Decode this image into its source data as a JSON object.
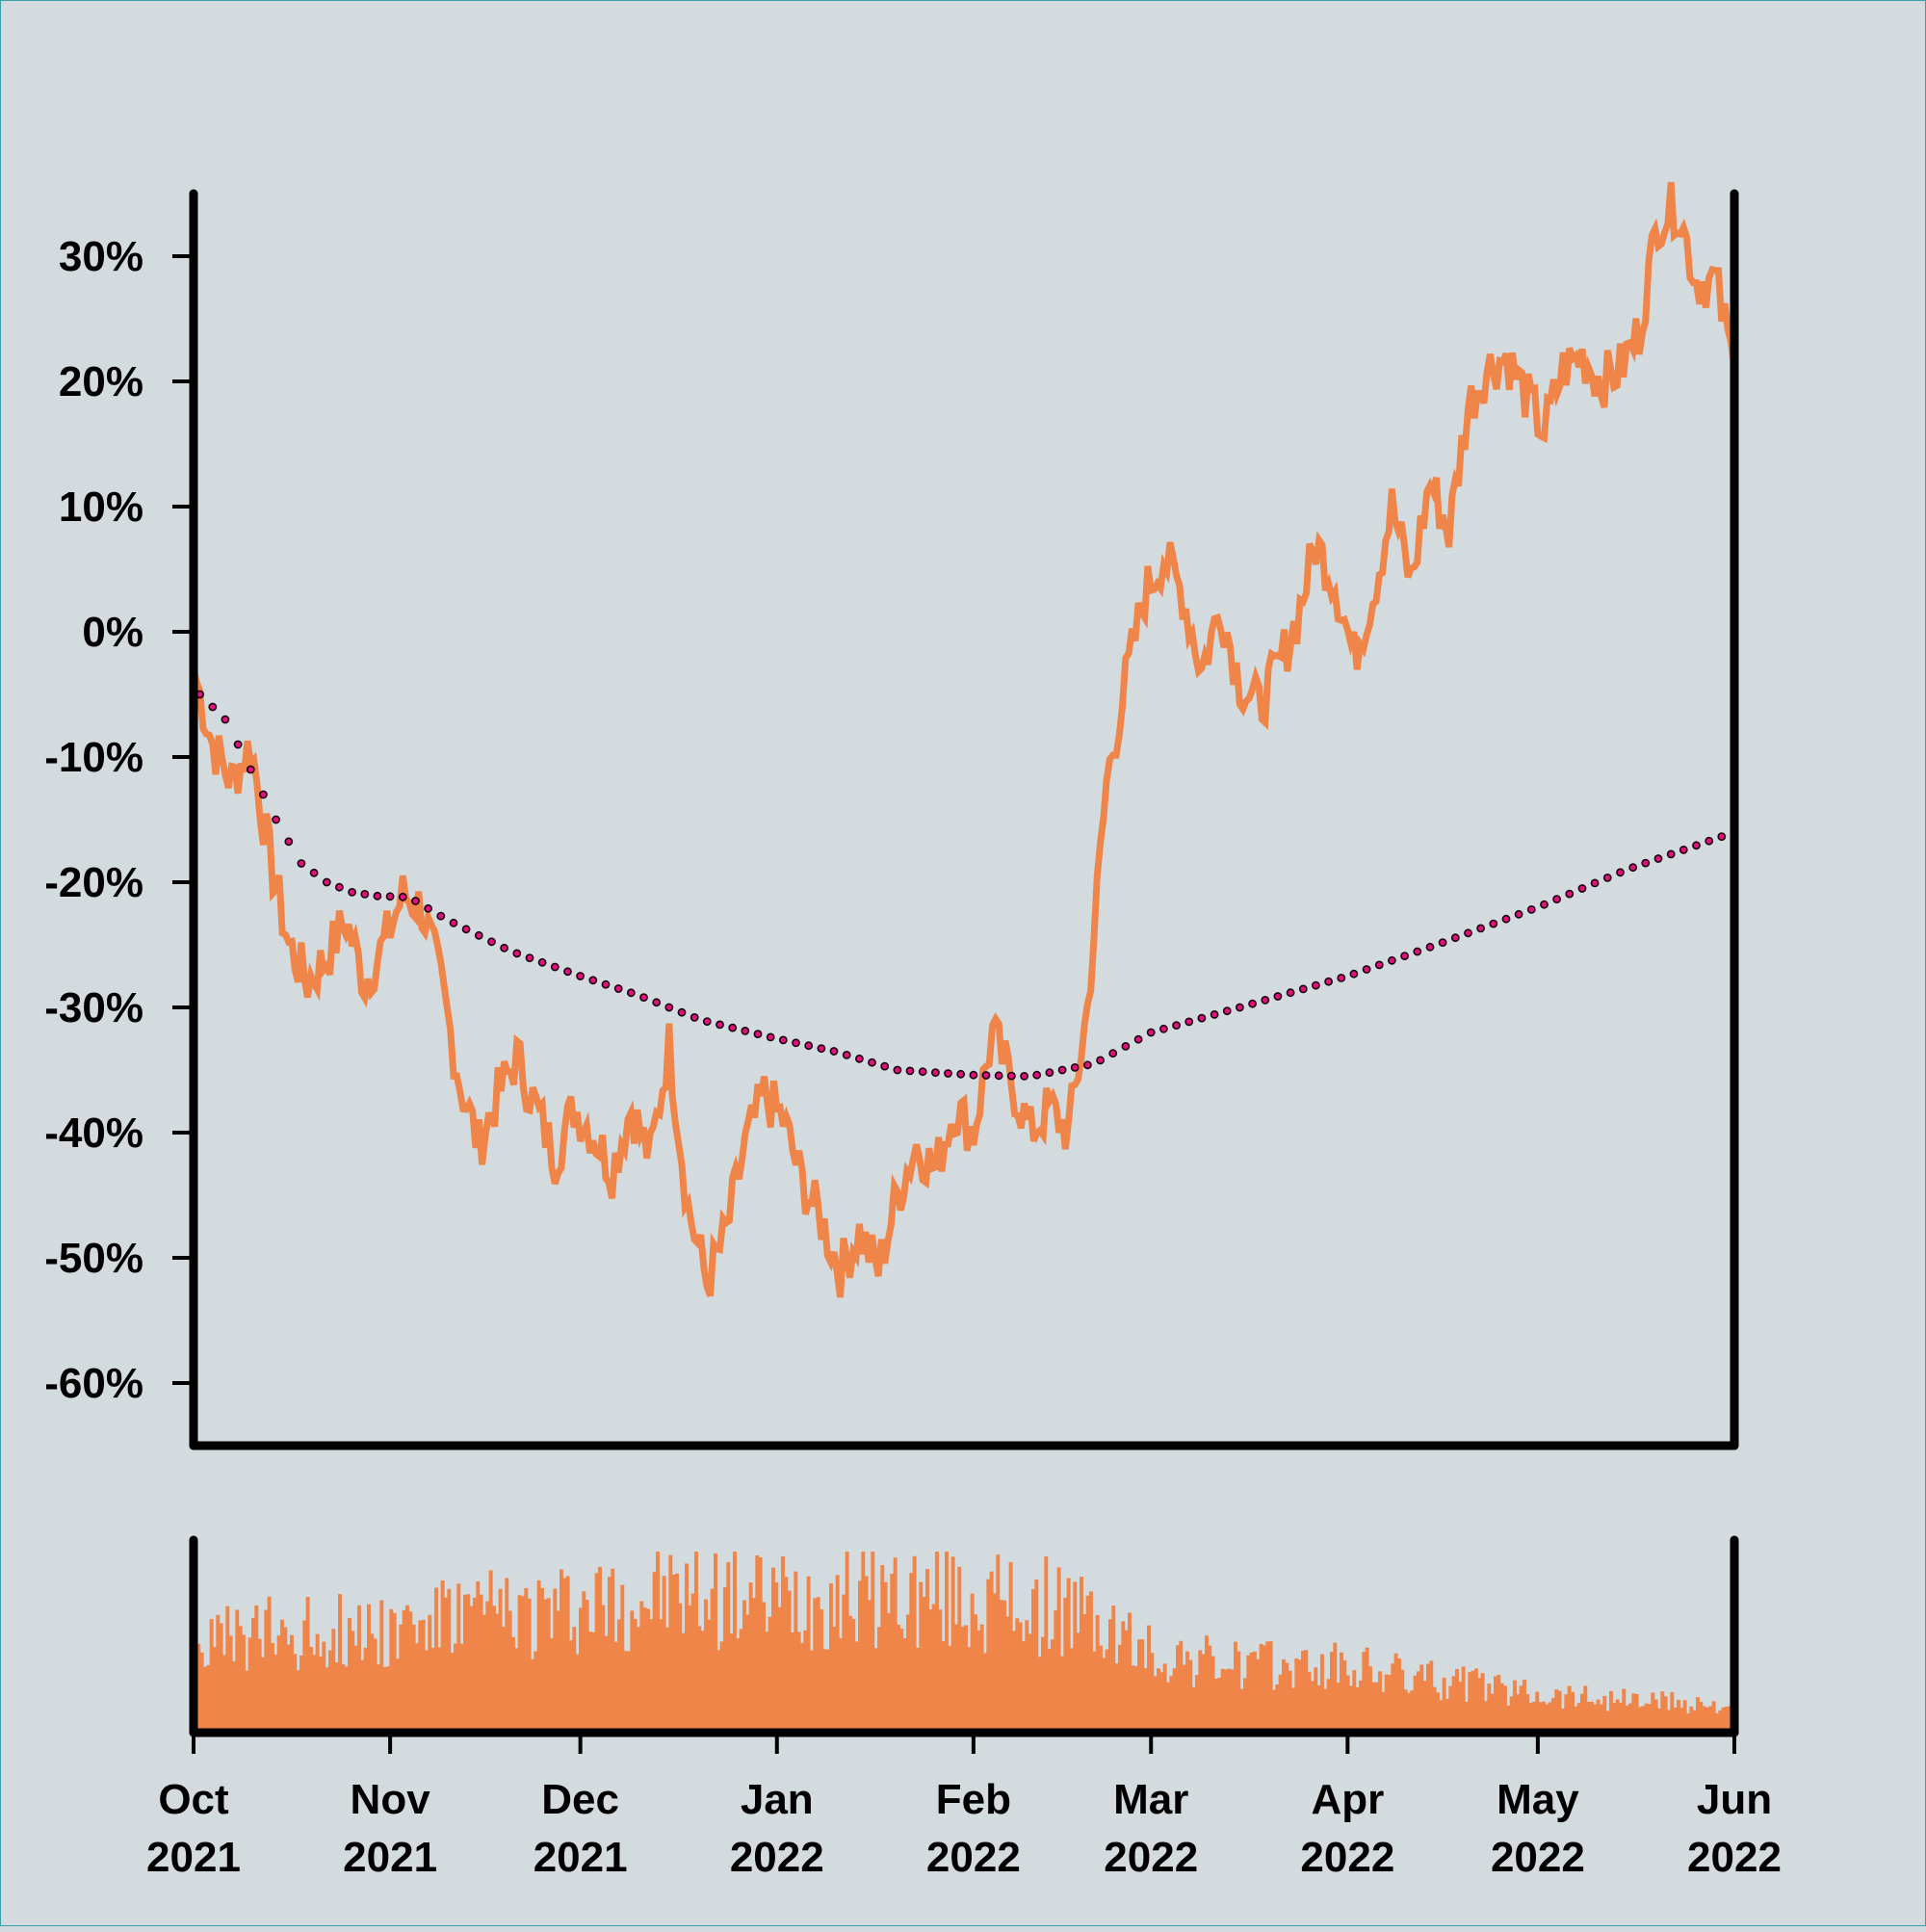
{
  "colors": {
    "background": "#d3dbdf",
    "price_line": "#ef8548",
    "volume_bars": "#ef8548",
    "moving_average_fill": "#e0117a",
    "moving_average_stroke": "#1a0010",
    "axis": "#000000"
  },
  "chart_data": [
    {
      "type": "line",
      "title": "",
      "xlabel": "",
      "ylabel": "",
      "x_range": [
        "2021-10-01",
        "2022-06-01"
      ],
      "ylim": [
        -65,
        35
      ],
      "y_ticks": [
        {
          "value": 30,
          "label": "30%"
        },
        {
          "value": 20,
          "label": "20%"
        },
        {
          "value": 10,
          "label": "10%"
        },
        {
          "value": 0,
          "label": "0%"
        },
        {
          "value": -10,
          "label": "-10%"
        },
        {
          "value": -20,
          "label": "-20%"
        },
        {
          "value": -30,
          "label": "-30%"
        },
        {
          "value": -40,
          "label": "-40%"
        },
        {
          "value": -50,
          "label": "-50%"
        },
        {
          "value": -60,
          "label": "-60%"
        }
      ],
      "grid": false,
      "series": [
        {
          "style": "solid-line",
          "points": [
            [
              "2021-10-01",
              -3
            ],
            [
              "2021-10-04",
              -9
            ],
            [
              "2021-10-07",
              -12
            ],
            [
              "2021-10-10",
              -9
            ],
            [
              "2021-10-13",
              -18
            ],
            [
              "2021-10-16",
              -25
            ],
            [
              "2021-10-19",
              -28
            ],
            [
              "2021-10-22",
              -26
            ],
            [
              "2021-10-25",
              -23
            ],
            [
              "2021-10-28",
              -28
            ],
            [
              "2021-10-31",
              -25
            ],
            [
              "2021-11-03",
              -21
            ],
            [
              "2021-11-06",
              -22
            ],
            [
              "2021-11-09",
              -28
            ],
            [
              "2021-11-12",
              -36
            ],
            [
              "2021-11-15",
              -41
            ],
            [
              "2021-11-18",
              -37
            ],
            [
              "2021-11-21",
              -34
            ],
            [
              "2021-11-24",
              -38
            ],
            [
              "2021-11-27",
              -42
            ],
            [
              "2021-11-30",
              -38
            ],
            [
              "2021-12-03",
              -40
            ],
            [
              "2021-12-06",
              -43
            ],
            [
              "2021-12-09",
              -38
            ],
            [
              "2021-12-12",
              -42
            ],
            [
              "2021-12-15",
              -33
            ],
            [
              "2021-12-18",
              -46
            ],
            [
              "2021-12-21",
              -52
            ],
            [
              "2021-12-24",
              -48
            ],
            [
              "2021-12-27",
              -41
            ],
            [
              "2021-12-30",
              -37
            ],
            [
              "2022-01-02",
              -39
            ],
            [
              "2022-01-05",
              -44
            ],
            [
              "2022-01-08",
              -47
            ],
            [
              "2022-01-11",
              -51
            ],
            [
              "2022-01-14",
              -48
            ],
            [
              "2022-01-17",
              -51
            ],
            [
              "2022-01-20",
              -45
            ],
            [
              "2022-01-23",
              -41
            ],
            [
              "2022-01-26",
              -43
            ],
            [
              "2022-01-29",
              -38
            ],
            [
              "2022-02-01",
              -40
            ],
            [
              "2022-02-04",
              -32
            ],
            [
              "2022-02-07",
              -36
            ],
            [
              "2022-02-10",
              -40
            ],
            [
              "2022-02-13",
              -38
            ],
            [
              "2022-02-16",
              -40
            ],
            [
              "2022-02-19",
              -30
            ],
            [
              "2022-02-22",
              -12
            ],
            [
              "2022-02-25",
              -4
            ],
            [
              "2022-02-28",
              3
            ],
            [
              "2022-03-03",
              6
            ],
            [
              "2022-03-06",
              3
            ],
            [
              "2022-03-09",
              -3
            ],
            [
              "2022-03-12",
              2
            ],
            [
              "2022-03-15",
              -4
            ],
            [
              "2022-03-18",
              -6
            ],
            [
              "2022-03-21",
              -3
            ],
            [
              "2022-03-24",
              1
            ],
            [
              "2022-03-27",
              7
            ],
            [
              "2022-03-30",
              4
            ],
            [
              "2022-04-02",
              -2
            ],
            [
              "2022-04-05",
              3
            ],
            [
              "2022-04-08",
              10
            ],
            [
              "2022-04-11",
              4
            ],
            [
              "2022-04-14",
              12
            ],
            [
              "2022-04-17",
              8
            ],
            [
              "2022-04-20",
              18
            ],
            [
              "2022-04-23",
              21
            ],
            [
              "2022-04-26",
              22
            ],
            [
              "2022-04-29",
              19
            ],
            [
              "2022-05-02",
              16
            ],
            [
              "2022-05-05",
              21
            ],
            [
              "2022-05-08",
              22
            ],
            [
              "2022-05-11",
              20
            ],
            [
              "2022-05-14",
              21
            ],
            [
              "2022-05-17",
              24
            ],
            [
              "2022-05-20",
              33
            ],
            [
              "2022-05-23",
              34
            ],
            [
              "2022-05-26",
              28
            ],
            [
              "2022-05-29",
              28
            ],
            [
              "2022-06-01",
              21
            ]
          ]
        },
        {
          "style": "dotted-markers",
          "points": [
            [
              "2021-10-02",
              -5
            ],
            [
              "2021-10-06",
              -7
            ],
            [
              "2021-10-10",
              -11
            ],
            [
              "2021-10-14",
              -15
            ],
            [
              "2021-10-18",
              -18.5
            ],
            [
              "2021-10-22",
              -20
            ],
            [
              "2021-10-26",
              -20.8
            ],
            [
              "2021-10-30",
              -21.1
            ],
            [
              "2021-11-04",
              -21.2
            ],
            [
              "2021-11-10",
              -23
            ],
            [
              "2021-11-20",
              -25.5
            ],
            [
              "2021-12-01",
              -27.5
            ],
            [
              "2021-12-10",
              -29
            ],
            [
              "2021-12-20",
              -31
            ],
            [
              "2022-01-01",
              -32.5
            ],
            [
              "2022-01-10",
              -33.5
            ],
            [
              "2022-01-20",
              -35
            ],
            [
              "2022-02-01",
              -35.4
            ],
            [
              "2022-02-10",
              -35.5
            ],
            [
              "2022-02-20",
              -34.5
            ],
            [
              "2022-03-01",
              -32
            ],
            [
              "2022-03-15",
              -30
            ],
            [
              "2022-04-01",
              -27.5
            ],
            [
              "2022-04-15",
              -25
            ],
            [
              "2022-05-01",
              -22
            ],
            [
              "2022-05-15",
              -19
            ],
            [
              "2022-06-01",
              -16
            ]
          ]
        }
      ]
    },
    {
      "type": "bar",
      "title": "",
      "xlabel": "",
      "ylabel": "",
      "x_range": [
        "2021-10-01",
        "2022-06-01"
      ],
      "x_ticks": [
        {
          "value": "2021-10-01",
          "label": [
            "Oct",
            "2021"
          ]
        },
        {
          "value": "2021-11-01",
          "label": [
            "Nov",
            "2021"
          ]
        },
        {
          "value": "2021-12-01",
          "label": [
            "Dec",
            "2021"
          ]
        },
        {
          "value": "2022-01-01",
          "label": [
            "Jan",
            "2022"
          ]
        },
        {
          "value": "2022-02-01",
          "label": [
            "Feb",
            "2022"
          ]
        },
        {
          "value": "2022-03-01",
          "label": [
            "Mar",
            "2022"
          ]
        },
        {
          "value": "2022-04-01",
          "label": [
            "Apr",
            "2022"
          ]
        },
        {
          "value": "2022-05-01",
          "label": [
            "May",
            "2022"
          ]
        },
        {
          "value": "2022-06-01",
          "label": [
            "Jun",
            "2022"
          ]
        }
      ],
      "ylim": [
        0,
        100
      ],
      "grid": false,
      "volume_profile": [
        [
          "2021-10-01",
          45
        ],
        [
          "2021-10-15",
          52
        ],
        [
          "2021-11-01",
          55
        ],
        [
          "2021-11-15",
          62
        ],
        [
          "2021-12-01",
          66
        ],
        [
          "2021-12-15",
          72
        ],
        [
          "2022-01-01",
          70
        ],
        [
          "2022-01-15",
          74
        ],
        [
          "2022-02-01",
          68
        ],
        [
          "2022-02-15",
          66
        ],
        [
          "2022-03-01",
          40
        ],
        [
          "2022-03-15",
          34
        ],
        [
          "2022-04-01",
          33
        ],
        [
          "2022-04-15",
          26
        ],
        [
          "2022-05-01",
          20
        ],
        [
          "2022-05-15",
          16
        ],
        [
          "2022-06-01",
          13
        ]
      ]
    }
  ]
}
